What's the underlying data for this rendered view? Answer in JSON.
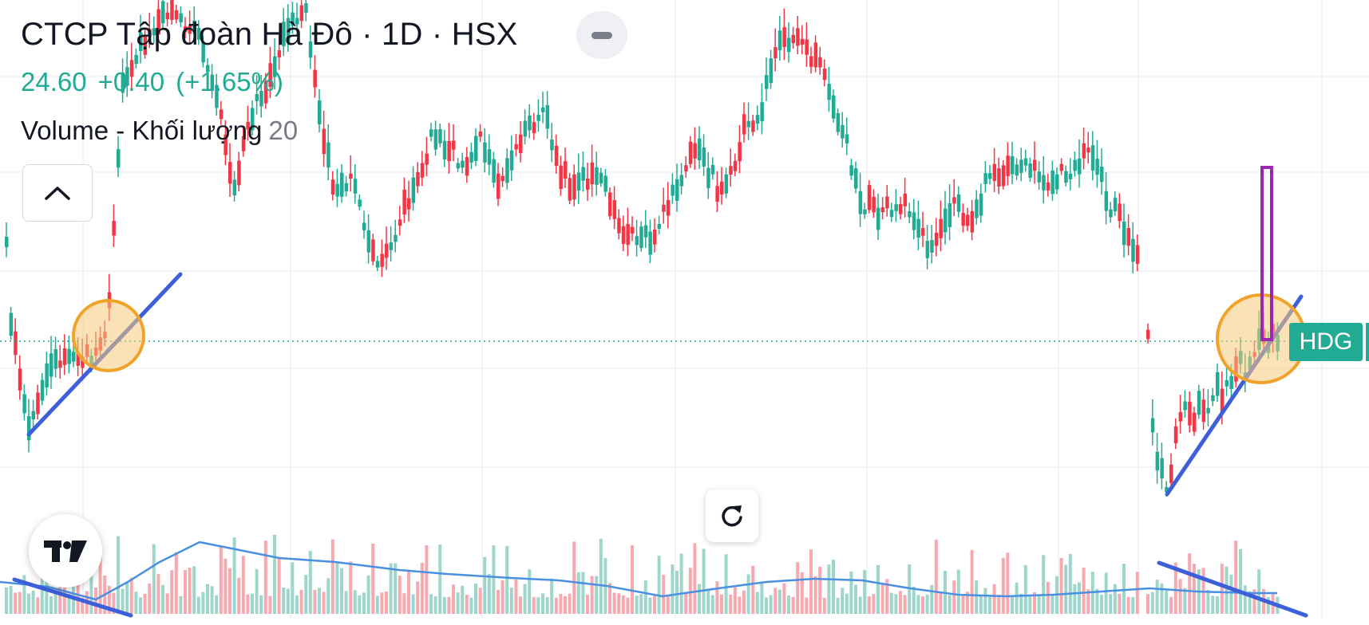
{
  "header": {
    "title": "CTCP Tập đoàn Hà Đô · 1D · HSX",
    "price": "24.60",
    "change": "+0.40",
    "change_pct": "(+1.65%)",
    "volume_label": "Volume - Khối lượng",
    "volume_period": "20"
  },
  "price_label": {
    "symbol": "HDG"
  },
  "colors": {
    "up": "#22ab94",
    "down": "#f23645",
    "up_volume": "#9fd6cc",
    "down_volume": "#f7a9b0",
    "volume_ma": "#4a90e2",
    "trendline": "#3d5fd9",
    "circle_stroke": "#f0a32a",
    "circle_fill": "#f7c97a",
    "projection": "#9c27b0"
  },
  "icons": {
    "collapse": "minus-pill-icon",
    "chevron": "chevron-up-icon",
    "reset": "rotate-reset-icon",
    "logo": "tradingview-logo-icon"
  }
}
